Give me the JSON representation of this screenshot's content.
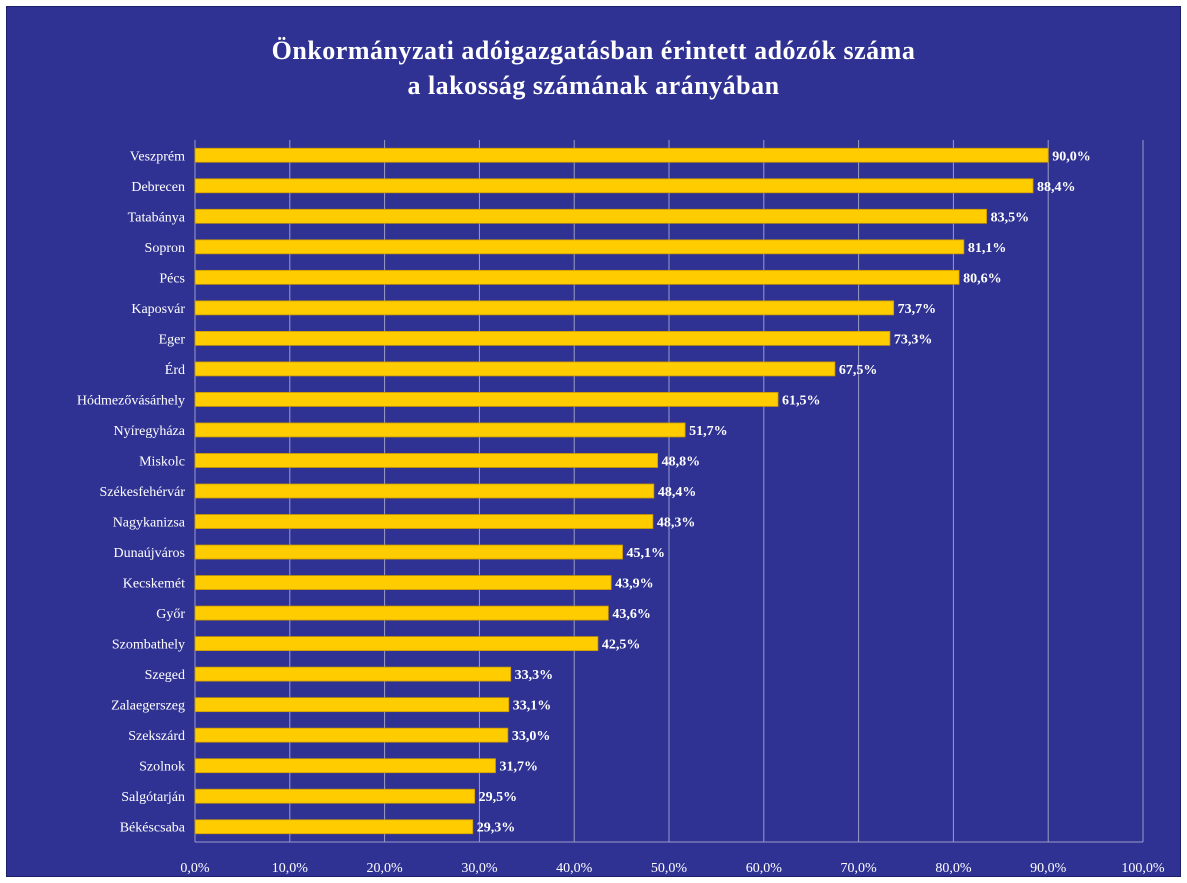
{
  "colors": {
    "background": "#2f3293",
    "bar": "#ffcc00",
    "bar_edge": "#c99a00",
    "grid": "#9a9cc8",
    "text": "#ffffff"
  },
  "chart_data": {
    "type": "bar",
    "orientation": "horizontal",
    "title_lines": [
      "Önkormányzati adóigazgatásban érintett adózók száma",
      "a lakosság számának arányában"
    ],
    "xlabel": "",
    "ylabel": "",
    "xlim": [
      0,
      100
    ],
    "grid": true,
    "legend": "none",
    "x_ticks": [
      0,
      10,
      20,
      30,
      40,
      50,
      60,
      70,
      80,
      90,
      100
    ],
    "x_tick_labels": [
      "0,0%",
      "10,0%",
      "20,0%",
      "30,0%",
      "40,0%",
      "50,0%",
      "60,0%",
      "70,0%",
      "80,0%",
      "90,0%",
      "100,0%"
    ],
    "categories": [
      "Veszprém",
      "Debrecen",
      "Tatabánya",
      "Sopron",
      "Pécs",
      "Kaposvár",
      "Eger",
      "Érd",
      "Hódmezővásárhely",
      "Nyíregyháza",
      "Miskolc",
      "Székesfehérvár",
      "Nagykanizsa",
      "Dunaújváros",
      "Kecskemét",
      "Győr",
      "Szombathely",
      "Szeged",
      "Zalaegerszeg",
      "Szekszárd",
      "Szolnok",
      "Salgótarján",
      "Békéscsaba"
    ],
    "values": [
      90.0,
      88.4,
      83.5,
      81.1,
      80.6,
      73.7,
      73.3,
      67.5,
      61.5,
      51.7,
      48.8,
      48.4,
      48.3,
      45.1,
      43.9,
      43.6,
      42.5,
      33.3,
      33.1,
      33.0,
      31.7,
      29.5,
      29.3
    ],
    "value_labels": [
      "90,0%",
      "88,4%",
      "83,5%",
      "81,1%",
      "80,6%",
      "73,7%",
      "73,3%",
      "67,5%",
      "61,5%",
      "51,7%",
      "48,8%",
      "48,4%",
      "48,3%",
      "45,1%",
      "43,9%",
      "43,6%",
      "42,5%",
      "33,3%",
      "33,1%",
      "33,0%",
      "31,7%",
      "29,5%",
      "29,3%"
    ]
  }
}
